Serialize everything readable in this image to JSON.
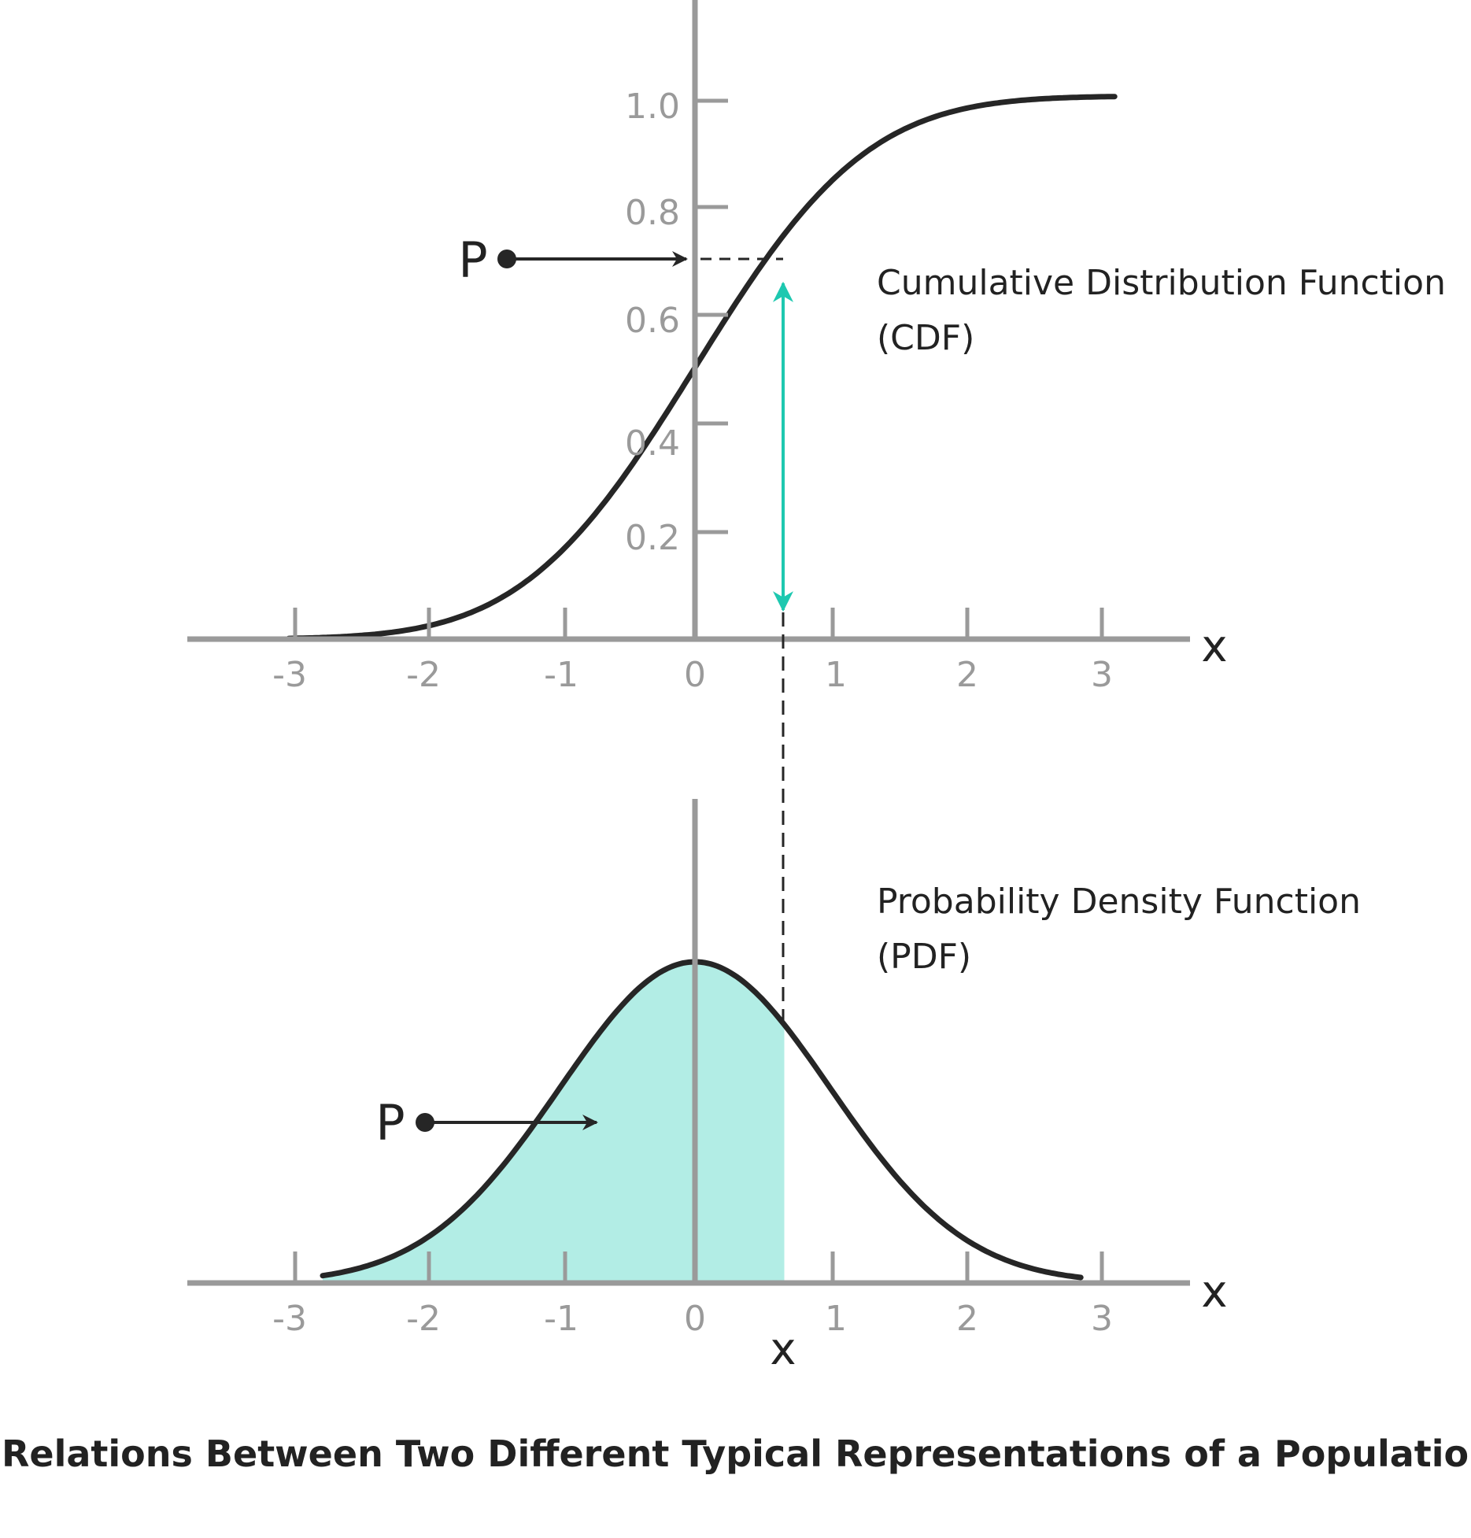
{
  "caption": "Relations Between Two Different Typical Representations of a Population",
  "colors": {
    "axis": "#9a9a9a",
    "curve": "#262626",
    "accent": "#1ec8b0",
    "fill": "#b2ede5",
    "text": "#222222"
  },
  "marked_x": 0.66,
  "marked_p": 0.72,
  "cdf": {
    "title_line1": "Cumulative Distribution Function",
    "title_line2": "(CDF)",
    "axis_label": "x",
    "p_label": "P",
    "x_ticks": [
      "-3",
      "-2",
      "-1",
      "0",
      "1",
      "2",
      "3"
    ],
    "y_ticks": [
      "0.2",
      "0.4",
      "0.6",
      "0.8",
      "1.0"
    ]
  },
  "pdf": {
    "title_line1": "Probability Density Function",
    "title_line2": "(PDF)",
    "axis_label": "x",
    "p_label": "P",
    "x_marker_label": "x",
    "x_ticks": [
      "-3",
      "-2",
      "-1",
      "0",
      "1",
      "2",
      "3"
    ]
  }
}
